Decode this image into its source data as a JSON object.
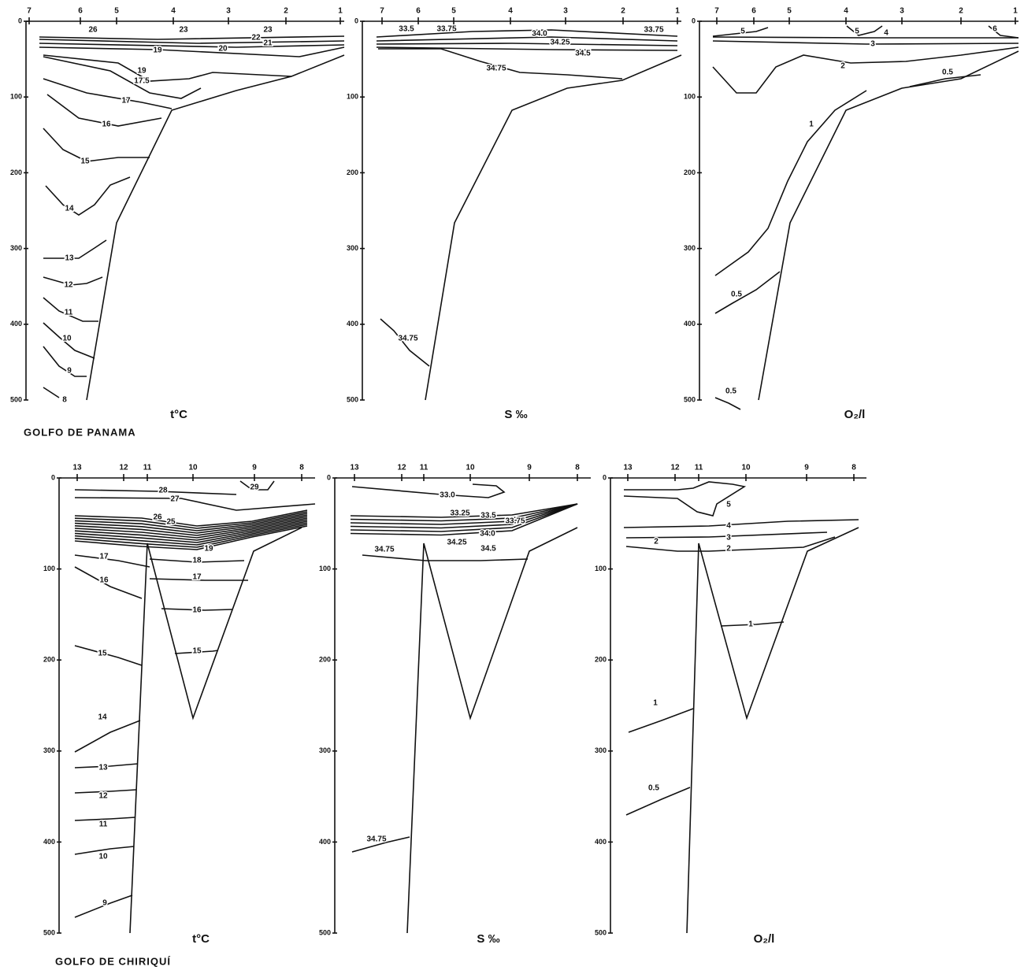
{
  "sections": [
    {
      "region": "GOLFO DE PANAMA",
      "panels": [
        {
          "parameter": "t°C",
          "stations": [
            "7",
            "6",
            "5",
            "4",
            "3",
            "2",
            "1"
          ],
          "depth_ticks": [
            0,
            100,
            200,
            300,
            400,
            500
          ],
          "contour_labels": [
            "26",
            "23",
            "23",
            "22",
            "21",
            "20",
            "19",
            "19",
            "17.5",
            "17",
            "16",
            "15",
            "14",
            "13",
            "12",
            "11",
            "10",
            "9",
            "8"
          ]
        },
        {
          "parameter": "S ‰",
          "stations": [
            "7",
            "6",
            "5",
            "4",
            "3",
            "2",
            "1"
          ],
          "depth_ticks": [
            0,
            100,
            200,
            300,
            400,
            500
          ],
          "contour_labels": [
            "33.5",
            "33.75",
            "34.0",
            "33.75",
            "34.25",
            "34.5",
            "34.75",
            "34.75"
          ]
        },
        {
          "parameter": "O₂/l",
          "stations": [
            "7",
            "6",
            "5",
            "4",
            "3",
            "2",
            "1"
          ],
          "depth_ticks": [
            0,
            100,
            200,
            300,
            400,
            500
          ],
          "contour_labels": [
            "5",
            "5",
            "4",
            "6",
            "3",
            "2",
            "0.5",
            "1",
            "0.5",
            "0.5"
          ]
        }
      ]
    },
    {
      "region": "GOLFO DE CHIRIQUÍ",
      "panels": [
        {
          "parameter": "t°C",
          "stations": [
            "13",
            "12",
            "11",
            "10",
            "9",
            "8"
          ],
          "depth_ticks": [
            0,
            100,
            200,
            300,
            400,
            500
          ],
          "contour_labels": [
            "29",
            "28",
            "27",
            "26",
            "25",
            "19",
            "18",
            "17",
            "17",
            "16",
            "16",
            "15",
            "15",
            "14",
            "13",
            "12",
            "11",
            "10",
            "9"
          ]
        },
        {
          "parameter": "S ‰",
          "stations": [
            "13",
            "12",
            "11",
            "10",
            "9",
            "8"
          ],
          "depth_ticks": [
            0,
            100,
            200,
            300,
            400,
            500
          ],
          "contour_labels": [
            "33.0",
            "33.25",
            "33.5",
            "33.75",
            "34.0",
            "34.25",
            "34.5",
            "34.75",
            "34.75"
          ]
        },
        {
          "parameter": "O₂/l",
          "stations": [
            "13",
            "12",
            "11",
            "10",
            "9",
            "8"
          ],
          "depth_ticks": [
            0,
            100,
            200,
            300,
            400,
            500
          ],
          "contour_labels": [
            "5",
            "4",
            "3",
            "2",
            "2",
            "1",
            "1",
            "0.5"
          ]
        }
      ]
    }
  ]
}
